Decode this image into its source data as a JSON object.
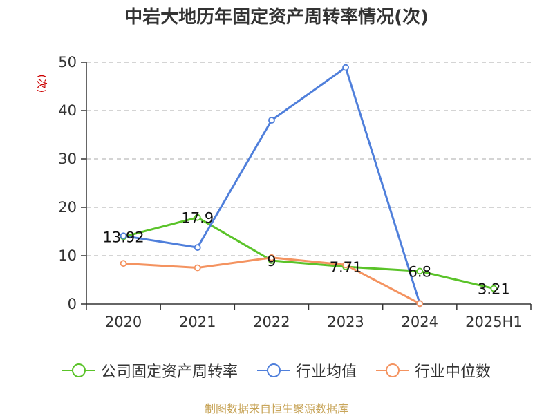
{
  "chart_data": {
    "type": "line",
    "title": "中岩大地历年固定资产周转率情况(次)",
    "ylabel": "(次)",
    "xlabel": "",
    "categories": [
      "2020",
      "2021",
      "2022",
      "2023",
      "2024",
      "2025H1"
    ],
    "yticks": [
      0,
      10,
      20,
      30,
      40,
      50
    ],
    "ylim": [
      0,
      50
    ],
    "grid": true,
    "legend_position": "bottom",
    "series": [
      {
        "name": "公司固定资产周转率",
        "color": "#5ac329",
        "values": [
          13.92,
          17.9,
          9,
          7.71,
          6.8,
          3.21
        ],
        "labels": [
          "13.92",
          "17.9",
          "9",
          "7.71",
          "6.8",
          "3.21"
        ]
      },
      {
        "name": "行业均值",
        "color": "#4f7fdb",
        "values": [
          14.1,
          11.7,
          38.0,
          48.9,
          0.1,
          null
        ]
      },
      {
        "name": "行业中位数",
        "color": "#f49360",
        "values": [
          8.4,
          7.5,
          9.6,
          8.1,
          0.1,
          null
        ]
      }
    ]
  },
  "source": "制图数据来自恒生聚源数据库"
}
